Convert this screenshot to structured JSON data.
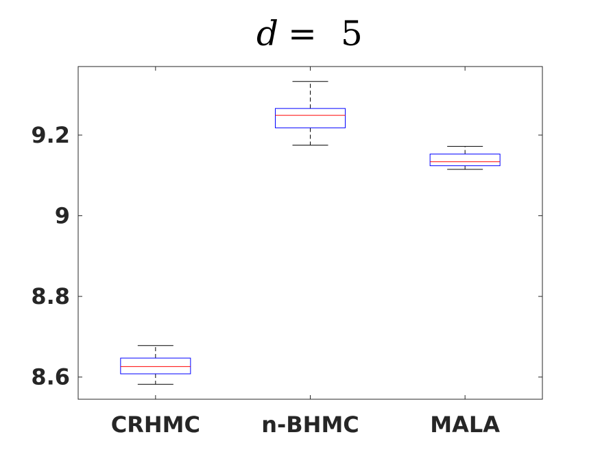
{
  "chart_data": {
    "type": "boxplot",
    "title": "d = 5",
    "title_parts": {
      "variable": "d",
      "operator": "=",
      "value": "5"
    },
    "xlabel": "",
    "ylabel": "",
    "categories": [
      "CRHMC",
      "n-BHMC",
      "MALA"
    ],
    "ylim": [
      8.545,
      9.37
    ],
    "yticks": [
      8.6,
      8.8,
      9,
      9.2
    ],
    "ytick_labels": [
      "8.6",
      "8.8",
      "9",
      "9.2"
    ],
    "grid": false,
    "boxes": [
      {
        "category": "CRHMC",
        "whisker_low": 8.582,
        "q1": 8.608,
        "median": 8.626,
        "q3": 8.647,
        "whisker_high": 8.678
      },
      {
        "category": "n-BHMC",
        "whisker_low": 9.175,
        "q1": 9.218,
        "median": 9.249,
        "q3": 9.266,
        "whisker_high": 9.333
      },
      {
        "category": "MALA",
        "whisker_low": 9.115,
        "q1": 9.124,
        "median": 9.134,
        "q3": 9.153,
        "whisker_high": 9.172
      }
    ],
    "colors": {
      "box": "#0000ff",
      "median": "#ff0000",
      "whisker": "#000000",
      "axis": "#262626"
    }
  }
}
